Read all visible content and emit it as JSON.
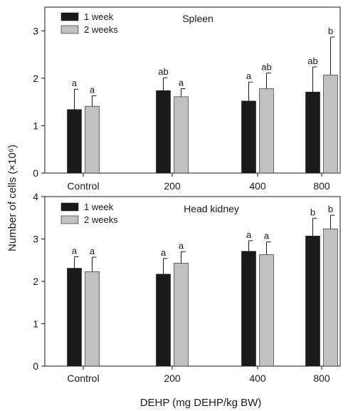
{
  "chart_data": [
    {
      "type": "bar",
      "title": "Spleen",
      "categories": [
        "Control",
        "200",
        "400",
        "800"
      ],
      "series": [
        {
          "name": "1 week",
          "color": "#1a1a1a",
          "values": [
            1.34,
            1.74,
            1.52,
            1.71
          ],
          "errors": [
            0.43,
            0.27,
            0.4,
            0.53
          ],
          "labels": [
            "a",
            "ab",
            "a",
            "ab"
          ]
        },
        {
          "name": "2 weeks",
          "color": "#c0c0c0",
          "values": [
            1.41,
            1.61,
            1.78,
            2.07
          ],
          "errors": [
            0.22,
            0.17,
            0.33,
            0.8
          ],
          "labels": [
            "a",
            "a",
            "ab",
            "b"
          ]
        }
      ],
      "ylim": [
        0,
        3.5
      ],
      "yticks": [
        "0",
        "1",
        "2",
        "3"
      ],
      "legend_position": "top-left",
      "grid": false
    },
    {
      "type": "bar",
      "title": "Head kidney",
      "categories": [
        "Control",
        "200",
        "400",
        "800"
      ],
      "series": [
        {
          "name": "1 week",
          "color": "#1a1a1a",
          "values": [
            2.31,
            2.17,
            2.71,
            3.07
          ],
          "errors": [
            0.27,
            0.37,
            0.25,
            0.42
          ],
          "labels": [
            "a",
            "a",
            "a",
            "b"
          ]
        },
        {
          "name": "2 weeks",
          "color": "#c0c0c0",
          "values": [
            2.23,
            2.43,
            2.63,
            3.24
          ],
          "errors": [
            0.34,
            0.27,
            0.3,
            0.32
          ],
          "labels": [
            "a",
            "a",
            "a",
            "b"
          ]
        }
      ],
      "ylim": [
        0,
        4
      ],
      "yticks": [
        "0",
        "1",
        "2",
        "3",
        "4"
      ],
      "legend_position": "top-left",
      "grid": false
    }
  ],
  "ylabel": "Number of cells (×10⁶)",
  "xlabel": "DEHP (mg DEHP/kg BW)"
}
